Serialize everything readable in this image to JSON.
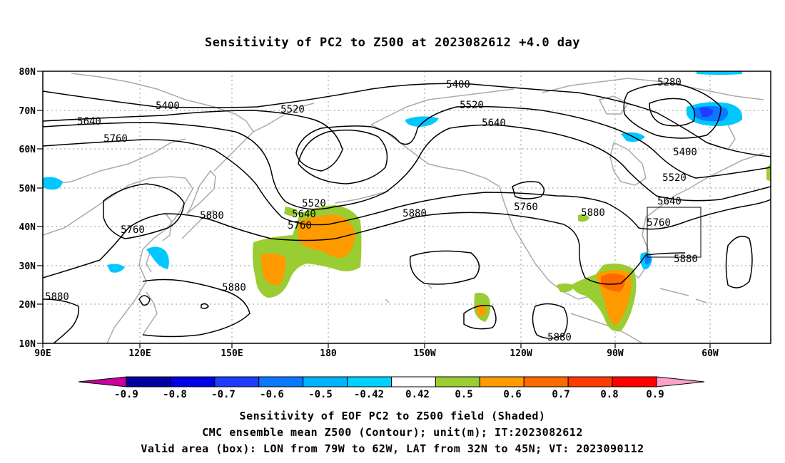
{
  "title": "Sensitivity of PC2 to Z500 at 2023082612 +4.0 day",
  "map": {
    "lat_ticks": [
      "80N",
      "70N",
      "60N",
      "50N",
      "40N",
      "30N",
      "20N",
      "10N"
    ],
    "lon_ticks": [
      "90E",
      "120E",
      "150E",
      "180",
      "150W",
      "120W",
      "90W",
      "60W"
    ],
    "contour_labels": [
      {
        "text": "5400",
        "name": "contour-5400-west"
      },
      {
        "text": "5520",
        "name": "contour-5520-west"
      },
      {
        "text": "5640",
        "name": "contour-5640-west"
      },
      {
        "text": "5760",
        "name": "contour-5760-west"
      },
      {
        "text": "5760",
        "name": "contour-5760-japan"
      },
      {
        "text": "5880",
        "name": "contour-5880-japan"
      },
      {
        "text": "5880",
        "name": "contour-5880-scs"
      },
      {
        "text": "5880",
        "name": "contour-5880-tropical"
      },
      {
        "text": "5520",
        "name": "contour-5520-dateline"
      },
      {
        "text": "5640",
        "name": "contour-5640-dateline"
      },
      {
        "text": "5760",
        "name": "contour-5760-dateline"
      },
      {
        "text": "5880",
        "name": "contour-5880-pacific"
      },
      {
        "text": "5400",
        "name": "contour-5400-north"
      },
      {
        "text": "5520",
        "name": "contour-5520-gulf"
      },
      {
        "text": "5640",
        "name": "contour-5640-gulf"
      },
      {
        "text": "5760",
        "name": "contour-5760-na"
      },
      {
        "text": "5880",
        "name": "contour-5880-rockies"
      },
      {
        "text": "5880",
        "name": "contour-5880-mexico"
      },
      {
        "text": "5280",
        "name": "contour-5280-canada"
      },
      {
        "text": "5400",
        "name": "contour-5400-canada"
      },
      {
        "text": "5520",
        "name": "contour-5520-east"
      },
      {
        "text": "5640",
        "name": "contour-5640-east"
      },
      {
        "text": "5760",
        "name": "contour-5760-east"
      },
      {
        "text": "5880",
        "name": "contour-5880-atlantic"
      }
    ],
    "valid_box": {
      "lon_range": "79W-62W",
      "lat_range": "32N-45N"
    }
  },
  "colorbar": {
    "labels": [
      "-0.9",
      "-0.8",
      "-0.7",
      "-0.6",
      "-0.5",
      "-0.42",
      "0.42",
      "0.5",
      "0.6",
      "0.7",
      "0.8",
      "0.9"
    ],
    "colors": [
      "#c8009c",
      "#0000a0",
      "#0000e6",
      "#1e3cff",
      "#0a78ff",
      "#00b4ff",
      "#00d2ff",
      "#ffffff",
      "#9acd32",
      "#ff9a00",
      "#ff6a00",
      "#ff3c00",
      "#ff0000",
      "#ffa0c8"
    ]
  },
  "captions": {
    "line1": "Sensitivity of EOF PC2 to Z500 field (Shaded)",
    "line2": "CMC ensemble mean Z500 (Contour); unit(m); IT:2023082612",
    "line3": "Valid area (box): LON from 79W to 62W, LAT from 32N to 45N; VT: 2023090112"
  }
}
